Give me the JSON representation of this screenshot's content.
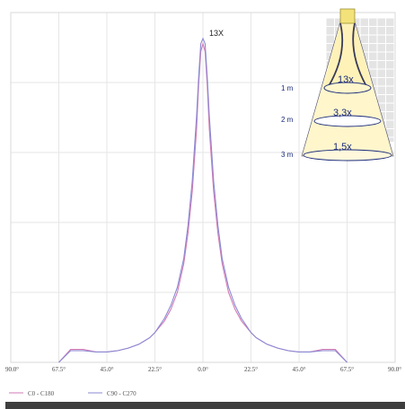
{
  "chart_data": {
    "type": "line",
    "peak_label": "13X",
    "x_ticks": [
      "90.0°",
      "67.5°",
      "45.0°",
      "22.5°",
      "0.0°",
      "22.5°",
      "45.0°",
      "67.5°",
      "90.0°"
    ],
    "x_tick_values": [
      -90,
      -67.5,
      -45,
      -22.5,
      0,
      22.5,
      45,
      67.5,
      90
    ],
    "xlim": [
      -90,
      90
    ],
    "ylim": [
      0,
      13.5
    ],
    "grid": true,
    "legend_position": "bottom-left",
    "series": [
      {
        "name": "C0 - C180",
        "color": "#d27ab4",
        "x": [
          -67.5,
          -62,
          -56,
          -50,
          -45,
          -40,
          -35,
          -30,
          -25,
          -22.5,
          -18,
          -15,
          -12,
          -9,
          -7,
          -5,
          -3,
          -2,
          -1,
          0,
          1,
          2,
          3,
          5,
          7,
          9,
          12,
          15,
          18,
          22.5,
          25,
          30,
          35,
          40,
          45,
          50,
          56,
          62,
          67.5
        ],
        "values": [
          0,
          0.5,
          0.5,
          0.4,
          0.4,
          0.45,
          0.55,
          0.7,
          0.95,
          1.15,
          1.6,
          2.05,
          2.7,
          3.8,
          5.0,
          6.6,
          9.0,
          10.7,
          12.0,
          12.3,
          12.0,
          10.7,
          9.0,
          6.6,
          5.0,
          3.8,
          2.7,
          2.05,
          1.6,
          1.15,
          0.95,
          0.7,
          0.55,
          0.45,
          0.4,
          0.4,
          0.5,
          0.5,
          0
        ]
      },
      {
        "name": "C90 - C270",
        "color": "#8a8ad4",
        "x": [
          -67.5,
          -62,
          -56,
          -50,
          -45,
          -40,
          -35,
          -30,
          -25,
          -22.5,
          -18,
          -15,
          -12,
          -9,
          -7,
          -5,
          -3,
          -2,
          -1,
          0,
          1,
          2,
          3,
          5,
          7,
          9,
          12,
          15,
          18,
          22.5,
          25,
          30,
          35,
          40,
          45,
          50,
          56,
          62,
          67.5
        ],
        "values": [
          0,
          0.45,
          0.45,
          0.4,
          0.4,
          0.45,
          0.55,
          0.7,
          0.95,
          1.15,
          1.7,
          2.2,
          2.9,
          4.0,
          5.3,
          7.0,
          9.5,
          11.0,
          12.3,
          12.5,
          12.3,
          11.0,
          9.5,
          7.0,
          5.3,
          4.0,
          2.9,
          2.2,
          1.7,
          1.15,
          0.95,
          0.7,
          0.55,
          0.45,
          0.4,
          0.4,
          0.45,
          0.45,
          0
        ]
      }
    ]
  },
  "inset": {
    "rows": [
      {
        "distance": "1 m",
        "multiplier": "13x"
      },
      {
        "distance": "2 m",
        "multiplier": "3,3x"
      },
      {
        "distance": "3 m",
        "multiplier": "1,5x"
      }
    ]
  },
  "colors": {
    "c0_line": "#d27ab4",
    "c90_line": "#8a8ad4",
    "grid": "#e6e6e6",
    "inset_text": "#1a2a7a",
    "inset_cone": "#fff6cc",
    "inset_grid": "#c8c8c8",
    "bottom_bar": "#3e3e3e"
  }
}
